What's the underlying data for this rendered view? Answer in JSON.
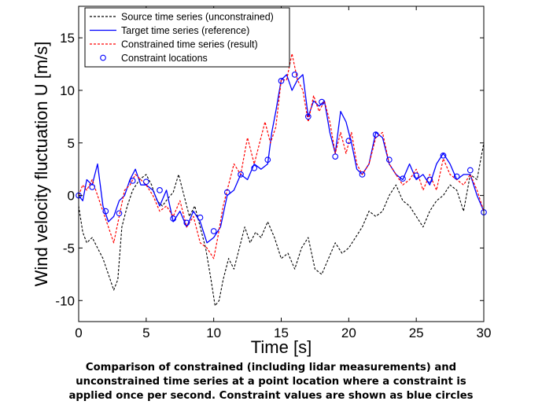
{
  "chart_data": {
    "type": "line",
    "xlabel": "Time [s]",
    "ylabel": "Wind velocity fluctuation U [m/s]",
    "xlim": [
      0,
      30
    ],
    "ylim": [
      -12,
      18
    ],
    "xticks": [
      "0",
      "5",
      "10",
      "15",
      "20",
      "25",
      "30"
    ],
    "yticks": [
      "-10",
      "-5",
      "0",
      "5",
      "10",
      "15"
    ],
    "grid": false,
    "legend_position": "top-left",
    "colors": {
      "source": "#000000",
      "target": "#0000ff",
      "constrained": "#ff0000",
      "constraint": "#0000ff"
    },
    "series": [
      {
        "name": "Source time series (unconstrained)",
        "style": "dashed-black",
        "x": [
          0,
          0.3,
          0.6,
          1,
          1.4,
          1.8,
          2.2,
          2.6,
          2.9,
          3.2,
          3.6,
          4,
          4.5,
          5,
          5.4,
          5.8,
          6.2,
          6.6,
          7,
          7.4,
          7.8,
          8.2,
          8.6,
          9,
          9.4,
          9.8,
          10.1,
          10.4,
          10.7,
          11.1,
          11.5,
          11.9,
          12.3,
          12.7,
          13.1,
          13.5,
          14,
          14.5,
          15,
          15.5,
          16,
          16.5,
          17,
          17.5,
          18,
          18.5,
          19,
          19.5,
          20,
          20.5,
          21,
          21.5,
          22,
          22.5,
          23,
          23.5,
          24,
          24.5,
          25,
          25.5,
          26,
          26.5,
          27,
          27.5,
          28,
          28.5,
          29,
          29.5,
          30
        ],
        "values": [
          -1,
          -3.5,
          -4.5,
          -4,
          -5,
          -6,
          -7.5,
          -9,
          -8,
          -3,
          -1,
          0.5,
          1.5,
          2,
          1,
          -0.5,
          -1,
          -0.3,
          0.3,
          2,
          0,
          -2,
          -1,
          -3,
          -5,
          -8,
          -10.5,
          -10,
          -8,
          -6,
          -7,
          -5,
          -3,
          -4.5,
          -3.5,
          -4,
          -2.5,
          -4,
          -6,
          -5.5,
          -7,
          -5,
          -4,
          -7,
          -7.5,
          -6,
          -4.5,
          -5.5,
          -5,
          -4,
          -3,
          -1.5,
          -2,
          -1.5,
          0,
          1,
          -0.5,
          -1,
          -2,
          -3,
          -1.5,
          -0.5,
          0,
          1,
          0.5,
          -1.5,
          2,
          1.5,
          5
        ]
      },
      {
        "name": "Target time series (reference)",
        "style": "solid-blue",
        "x": [
          0,
          0.3,
          0.6,
          1,
          1.4,
          1.8,
          2.2,
          2.6,
          3,
          3.4,
          3.8,
          4.2,
          4.6,
          5,
          5.5,
          6,
          6.5,
          7,
          7.5,
          8,
          8.5,
          9,
          9.5,
          10,
          10.5,
          11,
          11.5,
          12,
          12.5,
          13,
          13.5,
          14,
          14.3,
          14.6,
          15,
          15.4,
          15.8,
          16.2,
          16.6,
          17,
          17.4,
          17.8,
          18.2,
          18.6,
          19,
          19.4,
          19.8,
          20.2,
          20.6,
          21,
          21.5,
          22,
          22.5,
          23,
          23.5,
          24,
          24.5,
          25,
          25.5,
          26,
          26.5,
          27,
          27.5,
          28,
          28.5,
          29,
          29.5,
          30
        ],
        "values": [
          0,
          -0.5,
          1.5,
          1,
          3,
          -1,
          -2.5,
          -2,
          -0.5,
          0,
          1.5,
          2.5,
          1,
          1,
          0.5,
          -1,
          0.5,
          -2.5,
          -1.5,
          -3,
          -1.5,
          -2.5,
          -4.5,
          -4,
          -3,
          0,
          0.5,
          2,
          1.5,
          3,
          2.5,
          3,
          6,
          8,
          11,
          11.5,
          10,
          11,
          11.5,
          7.5,
          9,
          8.5,
          9,
          6,
          4,
          8,
          7,
          5,
          2.5,
          2,
          3,
          6,
          5.5,
          3,
          2,
          1.5,
          3,
          1.5,
          2,
          1,
          3,
          4,
          3,
          1.5,
          2,
          2,
          0,
          -1.5
        ]
      },
      {
        "name": "Constrained time series (result)",
        "style": "dashed-red",
        "x": [
          0,
          0.3,
          0.6,
          1,
          1.4,
          1.8,
          2.2,
          2.6,
          3,
          3.4,
          3.8,
          4.2,
          4.6,
          5,
          5.5,
          6,
          6.5,
          7,
          7.5,
          8,
          8.5,
          9,
          9.5,
          10,
          10.3,
          10.7,
          11,
          11.5,
          12,
          12.5,
          13,
          13.4,
          13.8,
          14.2,
          14.6,
          15,
          15.4,
          15.8,
          16.2,
          16.6,
          17,
          17.4,
          17.8,
          18.2,
          18.6,
          19,
          19.4,
          19.8,
          20.2,
          20.6,
          21,
          21.5,
          22,
          22.5,
          23,
          23.5,
          24,
          24.5,
          25,
          25.5,
          26,
          26.5,
          27,
          27.5,
          28,
          28.5,
          29,
          29.5,
          30
        ],
        "values": [
          0,
          1,
          0.5,
          1.5,
          0,
          -1.5,
          -3,
          -4.5,
          -2,
          0.5,
          1,
          2,
          1.5,
          1,
          0,
          -1.5,
          -1,
          -2,
          -0.5,
          -3,
          -2,
          -4.5,
          -5,
          -6,
          -4,
          -1,
          0.5,
          3,
          2,
          5.5,
          3,
          5,
          7,
          5,
          6.5,
          11,
          11,
          13.5,
          11,
          10,
          7,
          9.5,
          8,
          9,
          7,
          4,
          6,
          4,
          6,
          3,
          2,
          3,
          5.5,
          6,
          3,
          2,
          1,
          1.5,
          2.5,
          0.5,
          2,
          0.5,
          3.5,
          2,
          1.5,
          1,
          2,
          0.5,
          -1.5
        ]
      }
    ],
    "constraints": {
      "name": "Constraint locations",
      "x": [
        0,
        1,
        2,
        3,
        4,
        5,
        6,
        7,
        8,
        9,
        10,
        11,
        12,
        13,
        14,
        15,
        16,
        17,
        18,
        19,
        20,
        21,
        22,
        23,
        24,
        25,
        26,
        27,
        28,
        29,
        30
      ],
      "values": [
        0,
        0.8,
        -1.5,
        -1.7,
        1.4,
        1.3,
        0.5,
        -2.2,
        -2.6,
        -2.1,
        -3.4,
        0.3,
        2.0,
        2.6,
        3.4,
        10.9,
        11.5,
        7.5,
        8.9,
        3.7,
        5.2,
        2.0,
        5.8,
        3.4,
        1.6,
        1.9,
        1.5,
        3.8,
        1.8,
        2.4,
        -1.6
      ]
    }
  },
  "caption": {
    "line1": "Comparison of constrained (including lidar measurements) and",
    "line2": "unconstrained time series at a point location where a constraint is",
    "line3": "applied once per second. Constraint values are shown as blue circles"
  }
}
